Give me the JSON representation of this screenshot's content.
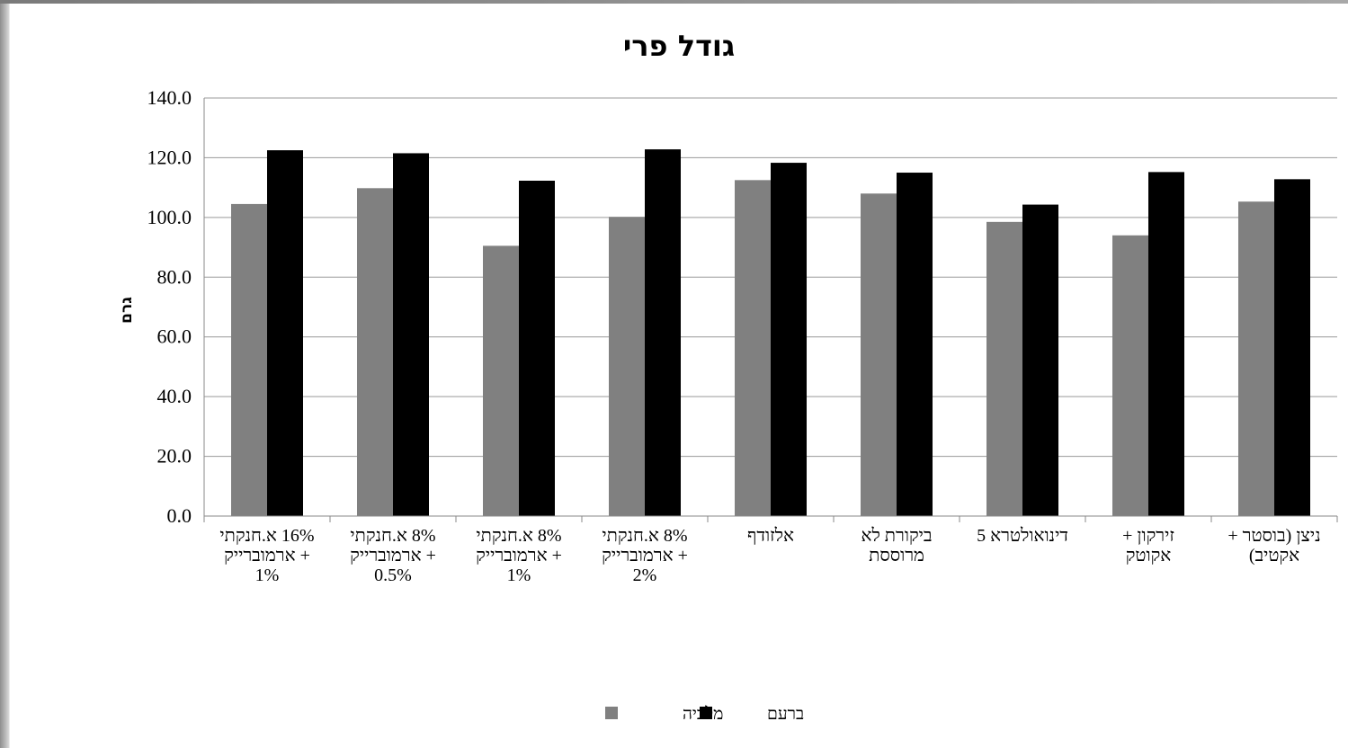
{
  "chart_data": {
    "type": "bar",
    "title": "גודל פרי",
    "ylabel": "גרם",
    "xlabel": "",
    "ylim": [
      0,
      140
    ],
    "y_ticks": [
      "0.0",
      "20.0",
      "40.0",
      "60.0",
      "80.0",
      "100.0",
      "120.0",
      "140.0"
    ],
    "grid": true,
    "legend_position": "bottom",
    "categories": [
      [
        "16% א.חנקתי",
        "+ ארמוברייק",
        "1%"
      ],
      [
        "8% א.חנקתי",
        "+ ארמוברייק",
        "0.5%"
      ],
      [
        "8% א.חנקתי",
        "+ ארמוברייק",
        "1%"
      ],
      [
        "8% א.חנקתי",
        "+ ארמוברייק",
        "2%"
      ],
      [
        "אלזודף"
      ],
      [
        "ביקורת לא",
        "מרוססת"
      ],
      [
        "דינואולטרא 5"
      ],
      [
        "זירקון +",
        "אקוטק"
      ],
      [
        "ניצן (בוסטר +",
        "אקטיב)"
      ]
    ],
    "series": [
      {
        "name": "מלכיה",
        "color": "#808080",
        "values": [
          104.5,
          109.8,
          90.5,
          100.2,
          112.5,
          108.0,
          98.5,
          94.0,
          105.3
        ]
      },
      {
        "name": "ברעם",
        "color": "#000000",
        "values": [
          122.5,
          121.5,
          112.3,
          122.8,
          118.3,
          115.0,
          104.3,
          115.2,
          112.8
        ]
      }
    ]
  }
}
